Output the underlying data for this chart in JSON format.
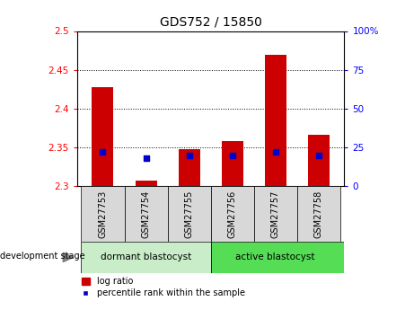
{
  "title": "GDS752 / 15850",
  "samples": [
    "GSM27753",
    "GSM27754",
    "GSM27755",
    "GSM27756",
    "GSM27757",
    "GSM27758"
  ],
  "log_ratio": [
    2.427,
    2.307,
    2.348,
    2.358,
    2.469,
    2.366
  ],
  "log_ratio_base": 2.3,
  "percentile_rank": [
    22,
    18,
    20,
    20,
    22,
    20
  ],
  "ylim_left": [
    2.3,
    2.5
  ],
  "ylim_right": [
    0,
    100
  ],
  "yticks_left": [
    2.3,
    2.35,
    2.4,
    2.45,
    2.5
  ],
  "ytick_labels_left": [
    "2.3",
    "2.35",
    "2.4",
    "2.45",
    "2.5"
  ],
  "yticks_right": [
    0,
    25,
    50,
    75,
    100
  ],
  "ytick_labels_right": [
    "0",
    "25",
    "50",
    "75",
    "100%"
  ],
  "bar_color": "#cc0000",
  "dot_color": "#0000cc",
  "group1_label": "dormant blastocyst",
  "group2_label": "active blastocyst",
  "group1_color": "#c8edc8",
  "group2_color": "#55dd55",
  "group1_indices": [
    0,
    1,
    2
  ],
  "group2_indices": [
    3,
    4,
    5
  ],
  "dev_stage_label": "development stage",
  "legend_bar_label": "log ratio",
  "legend_dot_label": "percentile rank within the sample",
  "plot_bg_color": "#ffffff",
  "sample_box_color": "#d8d8d8",
  "grid_lines_at": [
    2.35,
    2.4,
    2.45
  ]
}
